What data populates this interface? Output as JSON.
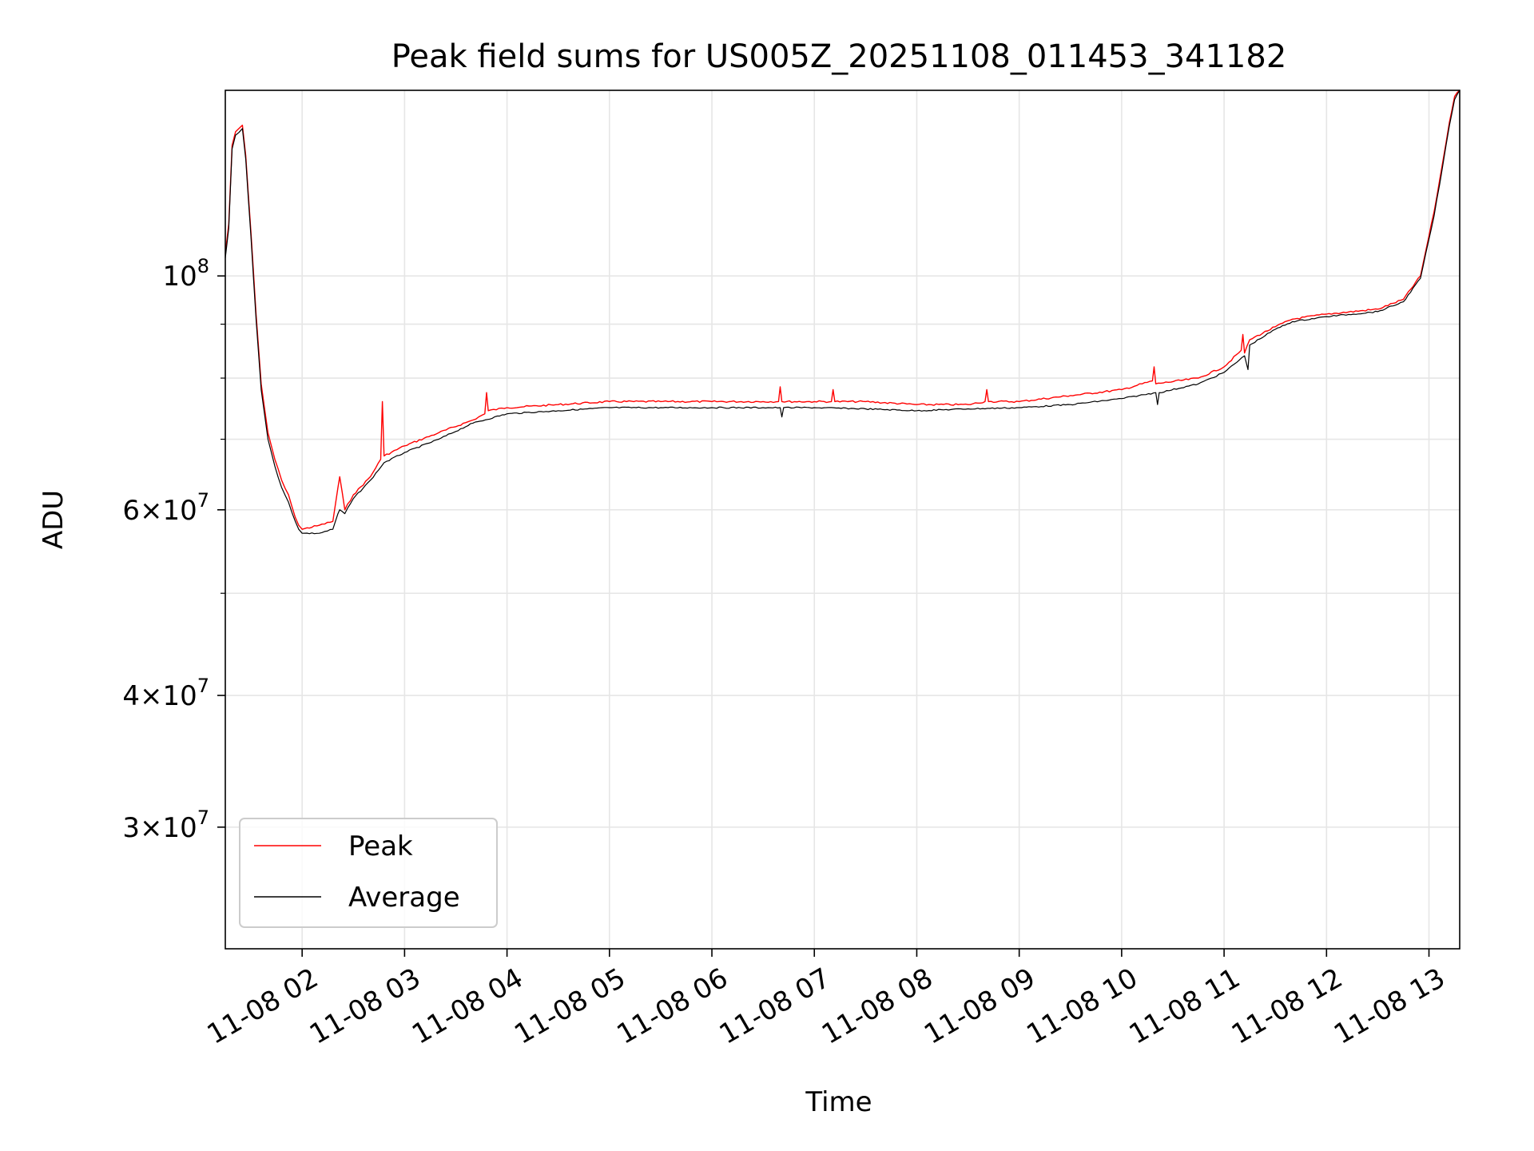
{
  "chart_data": {
    "type": "line",
    "title": "Peak field sums for US005Z_20251108_011453_341182",
    "xlabel": "Time",
    "ylabel": "ADU",
    "x_axis": {
      "kind": "datetime",
      "range": [
        "2025-11-08T01:15",
        "2025-11-08T13:18"
      ],
      "tick_labels": [
        "11-08 02",
        "11-08 03",
        "11-08 04",
        "11-08 05",
        "11-08 06",
        "11-08 07",
        "11-08 08",
        "11-08 09",
        "11-08 10",
        "11-08 11",
        "11-08 12",
        "11-08 13"
      ],
      "tick_values": [
        "2025-11-08T02:00",
        "2025-11-08T03:00",
        "2025-11-08T04:00",
        "2025-11-08T05:00",
        "2025-11-08T06:00",
        "2025-11-08T07:00",
        "2025-11-08T08:00",
        "2025-11-08T09:00",
        "2025-11-08T10:00",
        "2025-11-08T11:00",
        "2025-11-08T12:00",
        "2025-11-08T13:00"
      ],
      "tick_label_rotation": 30
    },
    "y_axis": {
      "scale": "log",
      "range": [
        23000000,
        150000000
      ],
      "major_ticks": [
        30000000,
        40000000,
        60000000,
        100000000
      ],
      "major_tick_labels": [
        {
          "mantissa": "3",
          "times": "×",
          "base": "10",
          "exp": "7"
        },
        {
          "mantissa": "4",
          "times": "×",
          "base": "10",
          "exp": "7"
        },
        {
          "mantissa": "6",
          "times": "×",
          "base": "10",
          "exp": "7"
        },
        {
          "mantissa": "",
          "times": "",
          "base": "10",
          "exp": "8"
        }
      ],
      "minor_ticks": [
        50000000,
        70000000,
        80000000,
        90000000
      ]
    },
    "grid": true,
    "legend": {
      "position": "lower-left",
      "entries": [
        {
          "label": "Peak",
          "color": "#ff0000"
        },
        {
          "label": "Average",
          "color": "#000000"
        }
      ]
    },
    "series": [
      {
        "name": "Peak",
        "color": "#ff0000",
        "x": [
          "2025-11-08T01:15",
          "2025-11-08T01:17",
          "2025-11-08T01:19",
          "2025-11-08T01:21",
          "2025-11-08T01:25",
          "2025-11-08T01:27",
          "2025-11-08T01:30",
          "2025-11-08T01:33",
          "2025-11-08T01:36",
          "2025-11-08T01:40",
          "2025-11-08T01:44",
          "2025-11-08T01:48",
          "2025-11-08T01:52",
          "2025-11-08T01:56",
          "2025-11-08T01:58",
          "2025-11-08T02:00",
          "2025-11-08T02:10",
          "2025-11-08T02:18",
          "2025-11-08T02:21",
          "2025-11-08T02:22",
          "2025-11-08T02:25",
          "2025-11-08T02:30",
          "2025-11-08T02:40",
          "2025-11-08T02:46",
          "2025-11-08T02:47",
          "2025-11-08T02:48",
          "2025-11-08T03:00",
          "2025-11-08T03:20",
          "2025-11-08T03:40",
          "2025-11-08T03:47",
          "2025-11-08T03:48",
          "2025-11-08T03:49",
          "2025-11-08T04:00",
          "2025-11-08T04:30",
          "2025-11-08T05:00",
          "2025-11-08T05:30",
          "2025-11-08T06:00",
          "2025-11-08T06:30",
          "2025-11-08T06:39",
          "2025-11-08T06:40",
          "2025-11-08T06:41",
          "2025-11-08T07:00",
          "2025-11-08T07:10",
          "2025-11-08T07:11",
          "2025-11-08T07:12",
          "2025-11-08T07:30",
          "2025-11-08T08:00",
          "2025-11-08T08:30",
          "2025-11-08T08:40",
          "2025-11-08T08:41",
          "2025-11-08T08:42",
          "2025-11-08T09:00",
          "2025-11-08T09:30",
          "2025-11-08T10:00",
          "2025-11-08T10:18",
          "2025-11-08T10:19",
          "2025-11-08T10:20",
          "2025-11-08T10:45",
          "2025-11-08T11:00",
          "2025-11-08T11:10",
          "2025-11-08T11:11",
          "2025-11-08T11:12",
          "2025-11-08T11:15",
          "2025-11-08T11:30",
          "2025-11-08T11:40",
          "2025-11-08T12:00",
          "2025-11-08T12:30",
          "2025-11-08T12:45",
          "2025-11-08T12:55",
          "2025-11-08T13:03",
          "2025-11-08T13:08",
          "2025-11-08T13:12",
          "2025-11-08T13:15",
          "2025-11-08T13:18"
        ],
        "y": [
          105000000,
          112000000,
          133000000,
          137000000,
          139000000,
          130000000,
          110000000,
          92000000,
          79000000,
          71000000,
          67000000,
          64000000,
          62000000,
          59000000,
          58000000,
          57500000,
          58000000,
          58500000,
          63000000,
          64500000,
          60000000,
          62000000,
          64500000,
          67000000,
          76000000,
          67500000,
          69000000,
          71000000,
          73000000,
          74000000,
          77500000,
          74500000,
          75000000,
          75500000,
          76000000,
          76000000,
          76000000,
          76000000,
          76000000,
          78500000,
          76000000,
          76000000,
          76000000,
          78000000,
          76000000,
          76000000,
          75500000,
          75500000,
          76000000,
          78000000,
          76000000,
          76000000,
          77000000,
          78000000,
          79500000,
          82000000,
          79000000,
          80000000,
          82000000,
          85000000,
          88000000,
          84500000,
          87000000,
          89500000,
          91000000,
          92000000,
          93000000,
          95000000,
          100000000,
          115000000,
          128000000,
          140000000,
          148000000,
          150000000
        ]
      },
      {
        "name": "Average",
        "color": "#000000",
        "x": [
          "2025-11-08T01:15",
          "2025-11-08T01:17",
          "2025-11-08T01:19",
          "2025-11-08T01:21",
          "2025-11-08T01:25",
          "2025-11-08T01:27",
          "2025-11-08T01:30",
          "2025-11-08T01:33",
          "2025-11-08T01:36",
          "2025-11-08T01:40",
          "2025-11-08T01:44",
          "2025-11-08T01:48",
          "2025-11-08T01:52",
          "2025-11-08T01:56",
          "2025-11-08T01:58",
          "2025-11-08T02:00",
          "2025-11-08T02:10",
          "2025-11-08T02:18",
          "2025-11-08T02:21",
          "2025-11-08T02:22",
          "2025-11-08T02:25",
          "2025-11-08T02:30",
          "2025-11-08T02:40",
          "2025-11-08T02:48",
          "2025-11-08T03:00",
          "2025-11-08T03:20",
          "2025-11-08T03:40",
          "2025-11-08T04:00",
          "2025-11-08T04:30",
          "2025-11-08T05:00",
          "2025-11-08T05:30",
          "2025-11-08T06:00",
          "2025-11-08T06:30",
          "2025-11-08T06:40",
          "2025-11-08T06:41",
          "2025-11-08T06:42",
          "2025-11-08T07:00",
          "2025-11-08T07:30",
          "2025-11-08T08:00",
          "2025-11-08T08:30",
          "2025-11-08T09:00",
          "2025-11-08T09:30",
          "2025-11-08T10:00",
          "2025-11-08T10:20",
          "2025-11-08T10:21",
          "2025-11-08T10:22",
          "2025-11-08T10:45",
          "2025-11-08T11:00",
          "2025-11-08T11:12",
          "2025-11-08T11:14",
          "2025-11-08T11:15",
          "2025-11-08T11:30",
          "2025-11-08T11:40",
          "2025-11-08T12:00",
          "2025-11-08T12:30",
          "2025-11-08T12:45",
          "2025-11-08T12:55",
          "2025-11-08T13:03",
          "2025-11-08T13:08",
          "2025-11-08T13:12",
          "2025-11-08T13:15",
          "2025-11-08T13:18"
        ],
        "y": [
          104000000,
          111000000,
          132000000,
          136000000,
          138000000,
          129000000,
          109000000,
          91000000,
          78000000,
          70000000,
          66000000,
          63000000,
          61000000,
          58500000,
          57500000,
          57000000,
          57000000,
          57500000,
          59500000,
          60000000,
          59500000,
          61500000,
          64000000,
          66500000,
          68000000,
          70000000,
          72500000,
          74000000,
          74500000,
          75000000,
          75000000,
          75000000,
          75000000,
          75000000,
          73500000,
          75000000,
          75000000,
          74800000,
          74500000,
          74800000,
          75000000,
          75500000,
          76500000,
          77500000,
          75500000,
          77500000,
          79000000,
          81000000,
          84000000,
          81500000,
          86000000,
          89000000,
          90500000,
          91500000,
          92500000,
          94500000,
          99500000,
          114000000,
          127000000,
          139000000,
          147000000,
          150000000
        ]
      }
    ]
  }
}
